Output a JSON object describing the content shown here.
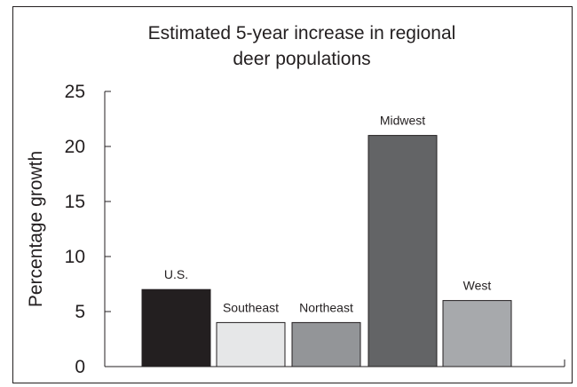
{
  "chart_data": {
    "type": "bar",
    "title_lines": [
      "Estimated 5-year increase in regional",
      "deer populations"
    ],
    "xlabel": "",
    "ylabel": "Percentage growth",
    "ylim": [
      0,
      25
    ],
    "yticks": [
      0,
      5,
      10,
      15,
      20,
      25
    ],
    "grid": false,
    "legend": "none",
    "categories": [
      "U.S.",
      "Southeast",
      "Northeast",
      "Midwest",
      "West"
    ],
    "values": [
      7,
      4,
      4,
      21,
      6
    ],
    "colors": [
      "#231f20",
      "#e6e7e8",
      "#939598",
      "#636466",
      "#a7a9ac"
    ]
  }
}
